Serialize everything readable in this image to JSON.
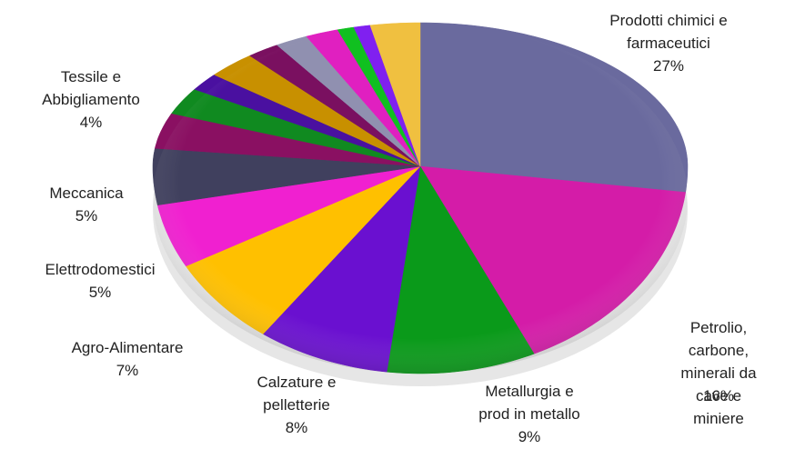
{
  "chart_data": {
    "type": "pie",
    "categories": [
      "Prodotti chimici e\nfarmaceutici",
      "Petrolio, carbone,\nminerali da cave e\nminiere",
      "Metallurgia e\nprod in metallo",
      "Calzature e\npelletterie",
      "Agro-Alimentare",
      "Elettrodomestici",
      "Meccanica",
      "Tessile e\nAbbigliamento",
      null,
      null,
      null,
      null,
      null,
      null,
      null,
      null,
      null
    ],
    "values": [
      27,
      16,
      9,
      8,
      7,
      5,
      5,
      4,
      3,
      2,
      3,
      2,
      2,
      2,
      1,
      1,
      3
    ],
    "value_labels": [
      "27%",
      "16%",
      "9%",
      "8%",
      "7%",
      "5%",
      "5%",
      "4%",
      null,
      null,
      null,
      null,
      null,
      null,
      null,
      null,
      null
    ],
    "colors": [
      "#6a6a9e",
      "#d41ca8",
      "#0a9a1a",
      "#6a10d0",
      "#ffc000",
      "#f020d0",
      "#40405e",
      "#8a1062",
      "#108a20",
      "#4a10a0",
      "#c89000",
      "#7a1060",
      "#9090b0",
      "#e020c0",
      "#10c020",
      "#8020f0",
      "#f0c040"
    ]
  }
}
